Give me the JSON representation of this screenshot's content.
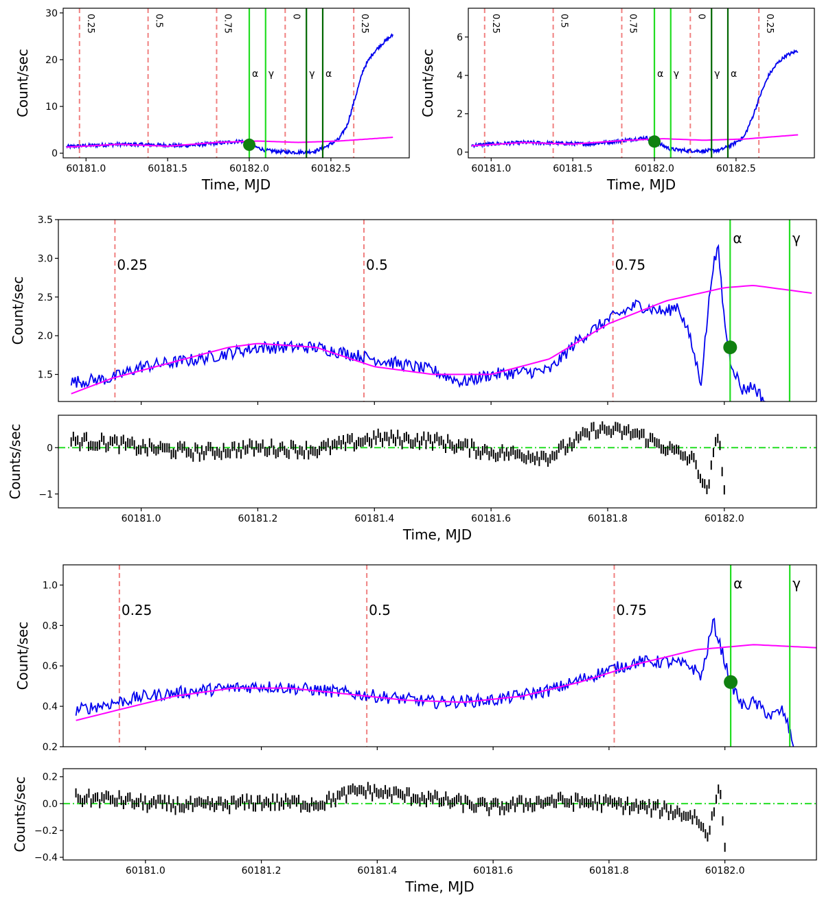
{
  "chart_data": [
    {
      "id": "top_left",
      "type": "line",
      "title": "",
      "xlabel": "Time, MJD",
      "ylabel": "Count/sec",
      "xlim": [
        60180.86,
        60182.98
      ],
      "ylim": [
        -1,
        31
      ],
      "xticks": [
        60181.0,
        60181.5,
        60182.0,
        60182.5
      ],
      "xtick_labels": [
        "60181.0",
        "60181.5",
        "60182.0",
        "60182.5"
      ],
      "yticks": [
        0,
        10,
        20,
        30
      ],
      "ytick_labels": [
        "0",
        "10",
        "20",
        "30"
      ],
      "grid": false,
      "phase_lines": [
        {
          "x": 60180.96,
          "label": "0.25"
        },
        {
          "x": 60181.38,
          "label": "0.5"
        },
        {
          "x": 60181.8,
          "label": "0.75"
        },
        {
          "x": 60182.22,
          "label": "0"
        },
        {
          "x": 60182.64,
          "label": "0.25"
        }
      ],
      "event_lines": [
        {
          "x": 60182.0,
          "label": "α",
          "color": "#22dd22"
        },
        {
          "x": 60182.1,
          "label": "γ",
          "color": "#22dd22"
        },
        {
          "x": 60182.35,
          "label": "γ",
          "color": "#006600"
        },
        {
          "x": 60182.45,
          "label": "α",
          "color": "#006600"
        }
      ],
      "marker": {
        "x": 60182.0,
        "y": 1.8
      },
      "series": [
        {
          "color": "#0000ee",
          "points": [
            [
              60180.88,
              1.4
            ],
            [
              60181.0,
              1.6
            ],
            [
              60181.2,
              1.9
            ],
            [
              60181.4,
              1.8
            ],
            [
              60181.6,
              1.6
            ],
            [
              60181.8,
              2.1
            ],
            [
              60181.95,
              2.6
            ],
            [
              60182.0,
              1.8
            ],
            [
              60182.1,
              0.6
            ],
            [
              60182.2,
              0.3
            ],
            [
              60182.3,
              0.2
            ],
            [
              60182.4,
              0.4
            ],
            [
              60182.47,
              1.4
            ],
            [
              60182.55,
              3.0
            ],
            [
              60182.6,
              6.0
            ],
            [
              60182.65,
              12.0
            ],
            [
              60182.7,
              18.0
            ],
            [
              60182.75,
              21.0
            ],
            [
              60182.8,
              23.0
            ],
            [
              60182.88,
              25.3
            ]
          ]
        },
        {
          "color": "#ff00ff",
          "points": [
            [
              60180.88,
              1.3
            ],
            [
              60181.2,
              1.9
            ],
            [
              60181.5,
              1.5
            ],
            [
              60181.8,
              2.3
            ],
            [
              60182.05,
              2.6
            ],
            [
              60182.3,
              2.3
            ],
            [
              60182.55,
              2.6
            ],
            [
              60182.88,
              3.4
            ]
          ]
        }
      ]
    },
    {
      "id": "top_right",
      "type": "line",
      "title": "",
      "xlabel": "Time, MJD",
      "ylabel": "Count/sec",
      "xlim": [
        60180.86,
        60182.98
      ],
      "ylim": [
        -0.3,
        7.5
      ],
      "xticks": [
        60181.0,
        60181.5,
        60182.0,
        60182.5
      ],
      "xtick_labels": [
        "60181.0",
        "60181.5",
        "60182.0",
        "60182.5"
      ],
      "yticks": [
        0,
        2,
        4,
        6
      ],
      "ytick_labels": [
        "0",
        "2",
        "4",
        "6"
      ],
      "grid": false,
      "phase_lines": [
        {
          "x": 60180.96,
          "label": "0.25"
        },
        {
          "x": 60181.38,
          "label": "0.5"
        },
        {
          "x": 60181.8,
          "label": "0.75"
        },
        {
          "x": 60182.22,
          "label": "0"
        },
        {
          "x": 60182.64,
          "label": "0.25"
        }
      ],
      "event_lines": [
        {
          "x": 60182.0,
          "label": "α",
          "color": "#22dd22"
        },
        {
          "x": 60182.1,
          "label": "γ",
          "color": "#22dd22"
        },
        {
          "x": 60182.35,
          "label": "γ",
          "color": "#006600"
        },
        {
          "x": 60182.45,
          "label": "α",
          "color": "#006600"
        }
      ],
      "marker": {
        "x": 60182.0,
        "y": 0.55
      },
      "series": [
        {
          "color": "#0000ee",
          "points": [
            [
              60180.88,
              0.35
            ],
            [
              60181.0,
              0.42
            ],
            [
              60181.2,
              0.5
            ],
            [
              60181.4,
              0.46
            ],
            [
              60181.6,
              0.42
            ],
            [
              60181.8,
              0.6
            ],
            [
              60181.95,
              0.75
            ],
            [
              60182.0,
              0.55
            ],
            [
              60182.1,
              0.15
            ],
            [
              60182.2,
              0.08
            ],
            [
              60182.3,
              0.06
            ],
            [
              60182.4,
              0.1
            ],
            [
              60182.47,
              0.35
            ],
            [
              60182.55,
              0.8
            ],
            [
              60182.6,
              1.8
            ],
            [
              60182.65,
              3.0
            ],
            [
              60182.7,
              4.0
            ],
            [
              60182.75,
              4.6
            ],
            [
              60182.8,
              5.0
            ],
            [
              60182.88,
              5.3
            ]
          ]
        },
        {
          "color": "#ff00ff",
          "points": [
            [
              60180.88,
              0.33
            ],
            [
              60181.2,
              0.5
            ],
            [
              60181.5,
              0.42
            ],
            [
              60181.8,
              0.6
            ],
            [
              60182.05,
              0.7
            ],
            [
              60182.3,
              0.62
            ],
            [
              60182.55,
              0.68
            ],
            [
              60182.88,
              0.9
            ]
          ]
        }
      ]
    },
    {
      "id": "middle_main",
      "type": "line",
      "title": "",
      "xlabel": "",
      "ylabel": "Count/sec",
      "xlim": [
        60180.858,
        60182.158
      ],
      "ylim": [
        1.15,
        3.5
      ],
      "xticks": [
        60181.0,
        60181.2,
        60181.4,
        60181.6,
        60181.8,
        60182.0
      ],
      "xtick_labels": [],
      "yticks": [
        1.5,
        2.0,
        2.5,
        3.0,
        3.5
      ],
      "ytick_labels": [
        "1.5",
        "2.0",
        "2.5",
        "3.0",
        "3.5"
      ],
      "grid": false,
      "phase_lines": [
        {
          "x": 60180.955,
          "label": "0.25"
        },
        {
          "x": 60181.382,
          "label": "0.5"
        },
        {
          "x": 60181.809,
          "label": "0.75"
        }
      ],
      "event_lines": [
        {
          "x": 60182.01,
          "label": "α",
          "color": "#22dd22"
        },
        {
          "x": 60182.112,
          "label": "γ",
          "color": "#22dd22"
        }
      ],
      "marker": {
        "x": 60182.01,
        "y": 1.85
      },
      "series": [
        {
          "color": "#0000ee",
          "points": [
            [
              60180.88,
              1.4
            ],
            [
              60180.95,
              1.45
            ],
            [
              60181.0,
              1.6
            ],
            [
              60181.1,
              1.7
            ],
            [
              60181.2,
              1.85
            ],
            [
              60181.3,
              1.85
            ],
            [
              60181.4,
              1.7
            ],
            [
              60181.5,
              1.55
            ],
            [
              60181.55,
              1.4
            ],
            [
              60181.6,
              1.5
            ],
            [
              60181.7,
              1.55
            ],
            [
              60181.75,
              1.95
            ],
            [
              60181.8,
              2.2
            ],
            [
              60181.85,
              2.4
            ],
            [
              60181.9,
              2.3
            ],
            [
              60181.92,
              2.4
            ],
            [
              60181.94,
              2.0
            ],
            [
              60181.96,
              1.4
            ],
            [
              60181.98,
              2.9
            ],
            [
              60181.99,
              3.1
            ],
            [
              60182.0,
              2.2
            ],
            [
              60182.01,
              1.7
            ],
            [
              60182.03,
              1.3
            ],
            [
              60182.05,
              1.35
            ],
            [
              60182.07,
              1.15
            ]
          ]
        },
        {
          "color": "#ff00ff",
          "points": [
            [
              60180.88,
              1.25
            ],
            [
              60180.95,
              1.45
            ],
            [
              60181.05,
              1.65
            ],
            [
              60181.15,
              1.85
            ],
            [
              60181.2,
              1.9
            ],
            [
              60181.3,
              1.85
            ],
            [
              60181.4,
              1.6
            ],
            [
              60181.5,
              1.5
            ],
            [
              60181.6,
              1.5
            ],
            [
              60181.7,
              1.7
            ],
            [
              60181.8,
              2.15
            ],
            [
              60181.9,
              2.45
            ],
            [
              60182.0,
              2.62
            ],
            [
              60182.05,
              2.65
            ],
            [
              60182.15,
              2.55
            ]
          ]
        }
      ]
    },
    {
      "id": "middle_residuals",
      "type": "scatter",
      "title": "",
      "xlabel": "Time, MJD",
      "ylabel": "Counts/sec",
      "xlim": [
        60180.858,
        60182.158
      ],
      "ylim": [
        -1.3,
        0.7
      ],
      "xticks": [
        60181.0,
        60181.2,
        60181.4,
        60181.6,
        60181.8,
        60182.0
      ],
      "xtick_labels": [
        "60181.0",
        "60181.2",
        "60181.4",
        "60181.6",
        "60181.8",
        "60182.0"
      ],
      "yticks": [
        -1,
        0
      ],
      "ytick_labels": [
        "−1",
        "0"
      ],
      "zero_line": 0,
      "grid": false,
      "residuals": [
        [
          60180.88,
          0.15
        ],
        [
          60180.95,
          0.1
        ],
        [
          60181.0,
          0.0
        ],
        [
          60181.1,
          -0.1
        ],
        [
          60181.2,
          0.0
        ],
        [
          60181.3,
          -0.05
        ],
        [
          60181.4,
          0.2
        ],
        [
          60181.5,
          0.15
        ],
        [
          60181.6,
          -0.1
        ],
        [
          60181.7,
          -0.2
        ],
        [
          60181.78,
          0.4
        ],
        [
          60181.85,
          0.3
        ],
        [
          60181.9,
          0.0
        ],
        [
          60181.95,
          -0.3
        ],
        [
          60181.97,
          -1.0
        ],
        [
          60181.99,
          0.4
        ],
        [
          60182.0,
          -1.0
        ]
      ]
    },
    {
      "id": "bottom_main",
      "type": "line",
      "title": "",
      "xlabel": "",
      "ylabel": "Count/sec",
      "xlim": [
        60180.858,
        60182.158
      ],
      "ylim": [
        0.2,
        1.1
      ],
      "xticks": [
        60181.0,
        60181.2,
        60181.4,
        60181.6,
        60181.8,
        60182.0
      ],
      "xtick_labels": [],
      "yticks": [
        0.2,
        0.4,
        0.6,
        0.8,
        1.0
      ],
      "ytick_labels": [
        "0.2",
        "0.4",
        "0.6",
        "0.8",
        "1.0"
      ],
      "grid": false,
      "phase_lines": [
        {
          "x": 60180.955,
          "label": "0.25"
        },
        {
          "x": 60181.382,
          "label": "0.5"
        },
        {
          "x": 60181.809,
          "label": "0.75"
        }
      ],
      "event_lines": [
        {
          "x": 60182.01,
          "label": "α",
          "color": "#22dd22"
        },
        {
          "x": 60182.112,
          "label": "γ",
          "color": "#22dd22"
        }
      ],
      "marker": {
        "x": 60182.01,
        "y": 0.52
      },
      "series": [
        {
          "color": "#0000ee",
          "points": [
            [
              60180.88,
              0.38
            ],
            [
              60180.95,
              0.42
            ],
            [
              60181.0,
              0.45
            ],
            [
              60181.1,
              0.48
            ],
            [
              60181.2,
              0.5
            ],
            [
              60181.3,
              0.48
            ],
            [
              60181.4,
              0.45
            ],
            [
              60181.5,
              0.42
            ],
            [
              60181.6,
              0.43
            ],
            [
              60181.7,
              0.48
            ],
            [
              60181.8,
              0.58
            ],
            [
              60181.85,
              0.62
            ],
            [
              60181.9,
              0.62
            ],
            [
              60181.94,
              0.6
            ],
            [
              60181.96,
              0.55
            ],
            [
              60181.98,
              0.82
            ],
            [
              60182.0,
              0.62
            ],
            [
              60182.01,
              0.52
            ],
            [
              60182.03,
              0.4
            ],
            [
              60182.05,
              0.42
            ],
            [
              60182.08,
              0.35
            ],
            [
              60182.1,
              0.38
            ],
            [
              60182.12,
              0.2
            ]
          ]
        },
        {
          "color": "#ff00ff",
          "points": [
            [
              60180.88,
              0.33
            ],
            [
              60180.95,
              0.38
            ],
            [
              60181.05,
              0.45
            ],
            [
              60181.15,
              0.49
            ],
            [
              60181.25,
              0.49
            ],
            [
              60181.35,
              0.46
            ],
            [
              60181.45,
              0.43
            ],
            [
              60181.55,
              0.42
            ],
            [
              60181.65,
              0.45
            ],
            [
              60181.75,
              0.52
            ],
            [
              60181.85,
              0.61
            ],
            [
              60181.95,
              0.68
            ],
            [
              60182.05,
              0.705
            ],
            [
              60182.158,
              0.69
            ]
          ]
        }
      ]
    },
    {
      "id": "bottom_residuals",
      "type": "scatter",
      "title": "",
      "xlabel": "Time, MJD",
      "ylabel": "Counts/sec",
      "xlim": [
        60180.858,
        60182.158
      ],
      "ylim": [
        -0.42,
        0.26
      ],
      "xticks": [
        60181.0,
        60181.2,
        60181.4,
        60181.6,
        60181.8,
        60182.0
      ],
      "xtick_labels": [
        "60181.0",
        "60181.2",
        "60181.4",
        "60181.6",
        "60181.8",
        "60182.0"
      ],
      "yticks": [
        -0.4,
        -0.2,
        0.0,
        0.2
      ],
      "ytick_labels": [
        "−0.4",
        "−0.2",
        "0.0",
        "0.2"
      ],
      "zero_line": 0,
      "grid": false,
      "residuals": [
        [
          60180.88,
          0.04
        ],
        [
          60180.95,
          0.03
        ],
        [
          60181.0,
          0.0
        ],
        [
          60181.1,
          -0.02
        ],
        [
          60181.2,
          0.01
        ],
        [
          60181.3,
          0.0
        ],
        [
          60181.37,
          0.1
        ],
        [
          60181.5,
          0.03
        ],
        [
          60181.6,
          -0.03
        ],
        [
          60181.7,
          0.02
        ],
        [
          60181.8,
          0.0
        ],
        [
          60181.9,
          -0.05
        ],
        [
          60181.95,
          -0.1
        ],
        [
          60181.97,
          -0.25
        ],
        [
          60181.99,
          0.15
        ],
        [
          60182.0,
          -0.3
        ]
      ]
    }
  ]
}
